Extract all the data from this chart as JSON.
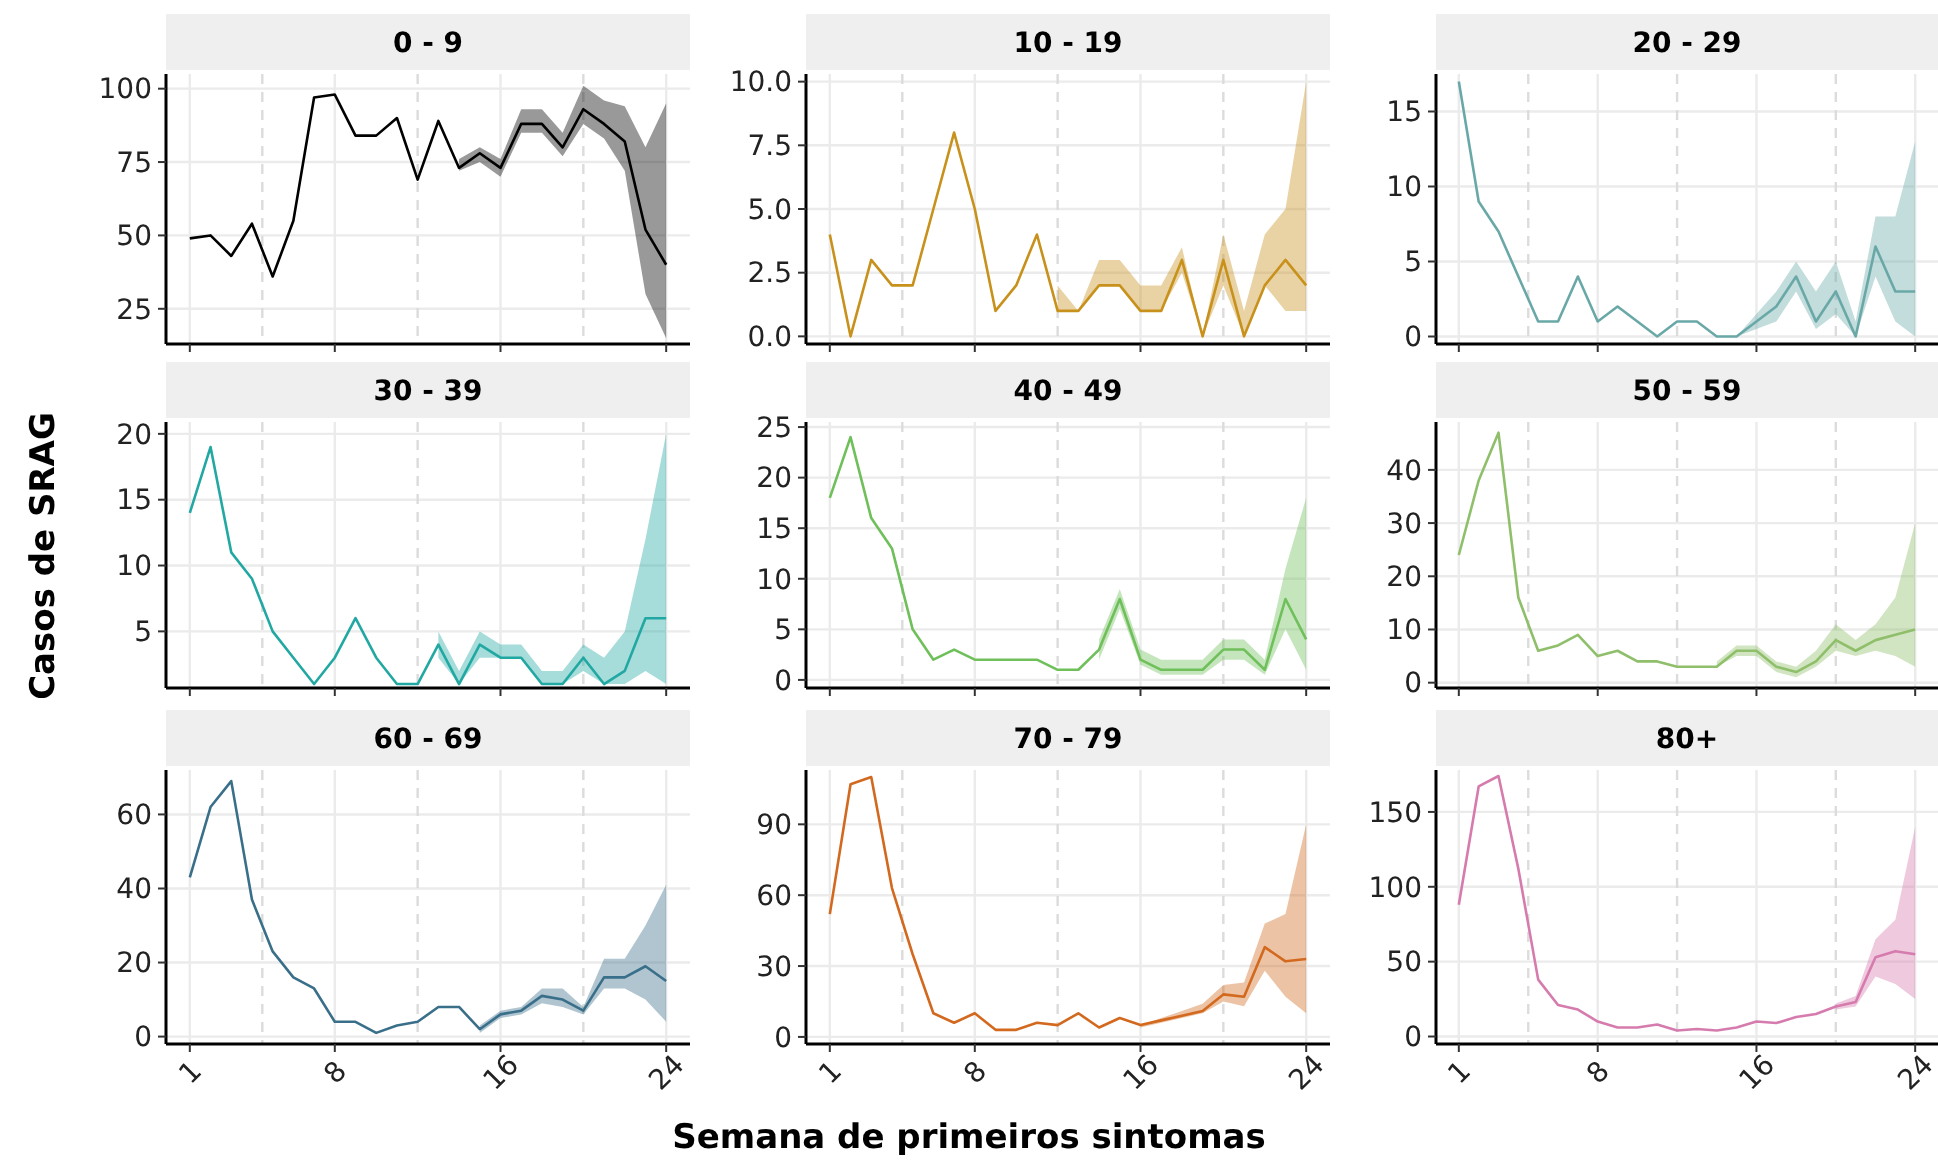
{
  "chart_data": [
    {
      "type": "line",
      "title": "0 - 9",
      "x": [
        1,
        2,
        3,
        4,
        5,
        6,
        7,
        8,
        9,
        10,
        11,
        12,
        13,
        14,
        15,
        16,
        17,
        18,
        19,
        20,
        21,
        22,
        23,
        24
      ],
      "xlim": [
        -0.15,
        25.15
      ],
      "xticks": [
        1,
        8,
        16,
        24
      ],
      "ylim": [
        13,
        105
      ],
      "yticks": [
        25,
        50,
        75,
        100
      ],
      "grid": true,
      "tick_labels": "y",
      "ref_lines": [
        {
          "axis": "x",
          "value": 4.5,
          "color": "#dcdcdc",
          "line_style": "dashed"
        },
        {
          "axis": "x",
          "value": 12,
          "color": "#dcdcdc",
          "line_style": "dashed"
        },
        {
          "axis": "x",
          "value": 20,
          "color": "#dcdcdc",
          "line_style": "dashed"
        }
      ],
      "series": [
        {
          "color": "#000000",
          "values": [
            49,
            50,
            43,
            54,
            36,
            55,
            97,
            98,
            84,
            84,
            90,
            69,
            89,
            73,
            78,
            73,
            88,
            88,
            80,
            93,
            88,
            82,
            52,
            40
          ],
          "lower": [
            null,
            null,
            null,
            null,
            null,
            null,
            null,
            null,
            null,
            null,
            null,
            null,
            null,
            72,
            75,
            70,
            85,
            85,
            77,
            88,
            83,
            72,
            30,
            15
          ],
          "upper": [
            null,
            null,
            null,
            null,
            null,
            null,
            null,
            null,
            null,
            null,
            null,
            null,
            null,
            76,
            80,
            76,
            93,
            93,
            85,
            101,
            96,
            94,
            80,
            95
          ]
        }
      ]
    },
    {
      "type": "line",
      "title": "10 - 19",
      "x": [
        1,
        2,
        3,
        4,
        5,
        6,
        7,
        8,
        9,
        10,
        11,
        12,
        13,
        14,
        15,
        16,
        17,
        18,
        19,
        20,
        21,
        22,
        23,
        24
      ],
      "xlim": [
        -0.15,
        25.15
      ],
      "xticks": [
        1,
        8,
        16,
        24
      ],
      "ylim": [
        -0.3,
        10.3
      ],
      "yticks": [
        {
          "value": 0,
          "label": "0.0"
        },
        {
          "value": 2.5,
          "label": "2.5"
        },
        {
          "value": 5,
          "label": "5.0"
        },
        {
          "value": 7.5,
          "label": "7.5"
        },
        {
          "value": 10,
          "label": "10.0"
        }
      ],
      "grid": true,
      "tick_labels": "y",
      "ref_lines": [
        {
          "axis": "x",
          "value": 4.5,
          "color": "#dcdcdc",
          "line_style": "dashed"
        },
        {
          "axis": "x",
          "value": 12,
          "color": "#dcdcdc",
          "line_style": "dashed"
        },
        {
          "axis": "x",
          "value": 20,
          "color": "#dcdcdc",
          "line_style": "dashed"
        }
      ],
      "series": [
        {
          "color": "#c8911c",
          "values": [
            4,
            0,
            3,
            2,
            2,
            5,
            8,
            5,
            1,
            2,
            4,
            1,
            1,
            2,
            2,
            1,
            1,
            3,
            0,
            3,
            0,
            2,
            3,
            2
          ],
          "lower": [
            null,
            null,
            null,
            null,
            null,
            null,
            null,
            null,
            null,
            null,
            null,
            1,
            1,
            2,
            2,
            1,
            1,
            2.5,
            0,
            2,
            0,
            2,
            1,
            1
          ],
          "upper": [
            null,
            null,
            null,
            null,
            null,
            null,
            null,
            null,
            null,
            null,
            null,
            2,
            1,
            3,
            3,
            2,
            2,
            3.5,
            0,
            4,
            1,
            4,
            5,
            10
          ]
        }
      ]
    },
    {
      "type": "line",
      "title": "20 - 29",
      "x": [
        1,
        2,
        3,
        4,
        5,
        6,
        7,
        8,
        9,
        10,
        11,
        12,
        13,
        14,
        15,
        16,
        17,
        18,
        19,
        20,
        21,
        22,
        23,
        24
      ],
      "xlim": [
        -0.15,
        25.15
      ],
      "xticks": [
        1,
        8,
        16,
        24
      ],
      "ylim": [
        -0.5,
        17.5
      ],
      "yticks": [
        0,
        5,
        10,
        15
      ],
      "grid": true,
      "tick_labels": "y",
      "ref_lines": [
        {
          "axis": "x",
          "value": 4.5,
          "color": "#dcdcdc",
          "line_style": "dashed"
        },
        {
          "axis": "x",
          "value": 12,
          "color": "#dcdcdc",
          "line_style": "dashed"
        },
        {
          "axis": "x",
          "value": 20,
          "color": "#dcdcdc",
          "line_style": "dashed"
        }
      ],
      "series": [
        {
          "color": "#6aa8a8",
          "values": [
            17,
            9,
            7,
            4,
            1,
            1,
            4,
            1,
            2,
            1,
            0,
            1,
            1,
            0,
            0,
            1,
            2,
            4,
            1,
            3,
            0,
            6,
            3,
            3
          ],
          "lower": [
            null,
            null,
            null,
            null,
            null,
            null,
            null,
            null,
            null,
            null,
            null,
            null,
            null,
            null,
            0,
            0.5,
            1,
            3,
            0.5,
            1.5,
            0,
            4,
            1,
            0
          ],
          "upper": [
            null,
            null,
            null,
            null,
            null,
            null,
            null,
            null,
            null,
            null,
            null,
            null,
            null,
            null,
            0,
            1.5,
            3,
            5,
            3,
            5,
            1,
            8,
            8,
            13
          ]
        }
      ]
    },
    {
      "type": "line",
      "title": "30 - 39",
      "ylabel": "Casos de SRAG",
      "x": [
        1,
        2,
        3,
        4,
        5,
        6,
        7,
        8,
        9,
        10,
        11,
        12,
        13,
        14,
        15,
        16,
        17,
        18,
        19,
        20,
        21,
        22,
        23,
        24
      ],
      "xlim": [
        -0.15,
        25.15
      ],
      "xticks": [
        1,
        8,
        16,
        24
      ],
      "ylim": [
        0.7,
        20.9
      ],
      "yticks": [
        5,
        10,
        15,
        20
      ],
      "grid": true,
      "tick_labels": "y",
      "ref_lines": [
        {
          "axis": "x",
          "value": 4.5,
          "color": "#dcdcdc",
          "line_style": "dashed"
        },
        {
          "axis": "x",
          "value": 12,
          "color": "#dcdcdc",
          "line_style": "dashed"
        },
        {
          "axis": "x",
          "value": 20,
          "color": "#dcdcdc",
          "line_style": "dashed"
        }
      ],
      "series": [
        {
          "color": "#21a8a2",
          "values": [
            14,
            19,
            11,
            9,
            5,
            3,
            1,
            3,
            6,
            3,
            1,
            1,
            4,
            1,
            4,
            3,
            3,
            1,
            1,
            3,
            1,
            2,
            6,
            6
          ],
          "lower": [
            null,
            null,
            null,
            null,
            null,
            null,
            null,
            null,
            null,
            null,
            null,
            null,
            3,
            1,
            3,
            3,
            3,
            1,
            1,
            2,
            1,
            1,
            2,
            1
          ],
          "upper": [
            null,
            null,
            null,
            null,
            null,
            null,
            null,
            null,
            null,
            null,
            null,
            null,
            5,
            2,
            5,
            4,
            4,
            2,
            2,
            4,
            3,
            5,
            12,
            20
          ]
        }
      ]
    },
    {
      "type": "line",
      "title": "40 - 49",
      "x": [
        1,
        2,
        3,
        4,
        5,
        6,
        7,
        8,
        9,
        10,
        11,
        12,
        13,
        14,
        15,
        16,
        17,
        18,
        19,
        20,
        21,
        22,
        23,
        24
      ],
      "xlim": [
        -0.15,
        25.15
      ],
      "xticks": [
        1,
        8,
        16,
        24
      ],
      "ylim": [
        -0.8,
        25.5
      ],
      "yticks": [
        0,
        5,
        10,
        15,
        20,
        25
      ],
      "grid": true,
      "tick_labels": "y",
      "ref_lines": [
        {
          "axis": "x",
          "value": 4.5,
          "color": "#dcdcdc",
          "line_style": "dashed"
        },
        {
          "axis": "x",
          "value": 12,
          "color": "#dcdcdc",
          "line_style": "dashed"
        },
        {
          "axis": "x",
          "value": 20,
          "color": "#dcdcdc",
          "line_style": "dashed"
        }
      ],
      "series": [
        {
          "color": "#6fbf5a",
          "values": [
            18,
            24,
            16,
            13,
            5,
            2,
            3,
            2,
            2,
            2,
            2,
            1,
            1,
            3,
            8,
            2,
            1,
            1,
            1,
            3,
            3,
            1,
            8,
            4
          ],
          "lower": [
            null,
            null,
            null,
            null,
            null,
            null,
            null,
            null,
            null,
            null,
            null,
            null,
            null,
            2,
            7,
            1.5,
            0.5,
            0.5,
            0.5,
            2,
            2,
            0.5,
            5,
            1
          ],
          "upper": [
            null,
            null,
            null,
            null,
            null,
            null,
            null,
            null,
            null,
            null,
            null,
            null,
            null,
            4,
            9,
            3,
            2,
            2,
            2,
            4,
            4,
            2,
            11,
            18
          ]
        }
      ]
    },
    {
      "type": "line",
      "title": "50 - 59",
      "x": [
        1,
        2,
        3,
        4,
        5,
        6,
        7,
        8,
        9,
        10,
        11,
        12,
        13,
        14,
        15,
        16,
        17,
        18,
        19,
        20,
        21,
        22,
        23,
        24
      ],
      "xlim": [
        -0.15,
        25.15
      ],
      "xticks": [
        1,
        8,
        16,
        24
      ],
      "ylim": [
        -1,
        49
      ],
      "yticks": [
        0,
        10,
        20,
        30,
        40
      ],
      "grid": true,
      "tick_labels": "y",
      "ref_lines": [
        {
          "axis": "x",
          "value": 4.5,
          "color": "#dcdcdc",
          "line_style": "dashed"
        },
        {
          "axis": "x",
          "value": 12,
          "color": "#dcdcdc",
          "line_style": "dashed"
        },
        {
          "axis": "x",
          "value": 20,
          "color": "#dcdcdc",
          "line_style": "dashed"
        }
      ],
      "series": [
        {
          "color": "#8fbf6a",
          "values": [
            24,
            38,
            47,
            16,
            6,
            7,
            9,
            5,
            6,
            4,
            4,
            3,
            3,
            3,
            6,
            6,
            3,
            2,
            4,
            8,
            6,
            8,
            9,
            10
          ],
          "lower": [
            null,
            null,
            null,
            null,
            null,
            null,
            null,
            null,
            null,
            null,
            null,
            null,
            null,
            3,
            5,
            5,
            2,
            1,
            3,
            6,
            5,
            6,
            5,
            3
          ],
          "upper": [
            null,
            null,
            null,
            null,
            null,
            null,
            null,
            null,
            null,
            null,
            null,
            null,
            null,
            4,
            7,
            7,
            4,
            3,
            6,
            11,
            8,
            11,
            16,
            30
          ]
        }
      ]
    },
    {
      "type": "line",
      "title": "60 - 69",
      "x": [
        1,
        2,
        3,
        4,
        5,
        6,
        7,
        8,
        9,
        10,
        11,
        12,
        13,
        14,
        15,
        16,
        17,
        18,
        19,
        20,
        21,
        22,
        23,
        24
      ],
      "xlim": [
        -0.15,
        25.15
      ],
      "xticks": [
        1,
        8,
        16,
        24
      ],
      "ylim": [
        -2,
        72
      ],
      "yticks": [
        0,
        20,
        40,
        60
      ],
      "grid": true,
      "ref_lines": [
        {
          "axis": "x",
          "value": 4.5,
          "color": "#dcdcdc",
          "line_style": "dashed"
        },
        {
          "axis": "x",
          "value": 12,
          "color": "#dcdcdc",
          "line_style": "dashed"
        },
        {
          "axis": "x",
          "value": 20,
          "color": "#dcdcdc",
          "line_style": "dashed"
        }
      ],
      "series": [
        {
          "color": "#3a6f8a",
          "values": [
            43,
            62,
            69,
            37,
            23,
            16,
            13,
            4,
            4,
            1,
            3,
            4,
            8,
            8,
            2,
            6,
            7,
            11,
            10,
            7,
            16,
            16,
            19,
            15
          ],
          "lower": [
            null,
            null,
            null,
            null,
            null,
            null,
            null,
            null,
            null,
            null,
            null,
            null,
            null,
            null,
            1,
            5,
            6,
            9,
            8,
            6,
            13,
            13,
            10,
            4
          ],
          "upper": [
            null,
            null,
            null,
            null,
            null,
            null,
            null,
            null,
            null,
            null,
            null,
            null,
            null,
            null,
            3,
            7,
            8,
            13,
            13,
            8,
            21,
            21,
            30,
            41
          ]
        }
      ]
    },
    {
      "type": "line",
      "title": "70 - 79",
      "xlabel": "Semana de primeiros sintomas",
      "x": [
        1,
        2,
        3,
        4,
        5,
        6,
        7,
        8,
        9,
        10,
        11,
        12,
        13,
        14,
        15,
        16,
        17,
        18,
        19,
        20,
        21,
        22,
        23,
        24
      ],
      "xlim": [
        -0.15,
        25.15
      ],
      "xticks": [
        1,
        8,
        16,
        24
      ],
      "ylim": [
        -3,
        113
      ],
      "yticks": [
        0,
        30,
        60,
        90
      ],
      "grid": true,
      "ref_lines": [
        {
          "axis": "x",
          "value": 4.5,
          "color": "#dcdcdc",
          "line_style": "dashed"
        },
        {
          "axis": "x",
          "value": 12,
          "color": "#dcdcdc",
          "line_style": "dashed"
        },
        {
          "axis": "x",
          "value": 20,
          "color": "#dcdcdc",
          "line_style": "dashed"
        }
      ],
      "series": [
        {
          "color": "#d2691e",
          "values": [
            52,
            107,
            110,
            63,
            35,
            10,
            6,
            10,
            3,
            3,
            6,
            5,
            10,
            4,
            8,
            5,
            7,
            9,
            11,
            18,
            17,
            38,
            32,
            33
          ],
          "lower": [
            null,
            null,
            null,
            null,
            null,
            null,
            null,
            null,
            null,
            null,
            null,
            null,
            null,
            null,
            null,
            4,
            6,
            8,
            10,
            15,
            13,
            28,
            17,
            10
          ],
          "upper": [
            null,
            null,
            null,
            null,
            null,
            null,
            null,
            null,
            null,
            null,
            null,
            null,
            null,
            null,
            null,
            5,
            8,
            11,
            14,
            22,
            23,
            48,
            52,
            90
          ]
        }
      ]
    },
    {
      "type": "line",
      "title": "80+",
      "x": [
        1,
        2,
        3,
        4,
        5,
        6,
        7,
        8,
        9,
        10,
        11,
        12,
        13,
        14,
        15,
        16,
        17,
        18,
        19,
        20,
        21,
        22,
        23,
        24
      ],
      "xlim": [
        -0.15,
        25.15
      ],
      "xticks": [
        1,
        8,
        16,
        24
      ],
      "ylim": [
        -5,
        178
      ],
      "yticks": [
        0,
        50,
        100,
        150
      ],
      "grid": true,
      "ref_lines": [
        {
          "axis": "x",
          "value": 4.5,
          "color": "#dcdcdc",
          "line_style": "dashed"
        },
        {
          "axis": "x",
          "value": 12,
          "color": "#dcdcdc",
          "line_style": "dashed"
        },
        {
          "axis": "x",
          "value": 20,
          "color": "#dcdcdc",
          "line_style": "dashed"
        }
      ],
      "series": [
        {
          "color": "#d67bad",
          "values": [
            88,
            167,
            174,
            112,
            38,
            21,
            18,
            10,
            6,
            6,
            8,
            4,
            5,
            4,
            6,
            10,
            9,
            13,
            15,
            20,
            23,
            53,
            57,
            55
          ],
          "lower": [
            null,
            null,
            null,
            null,
            null,
            null,
            null,
            null,
            null,
            null,
            null,
            null,
            null,
            null,
            null,
            null,
            null,
            null,
            null,
            18,
            20,
            40,
            35,
            25
          ],
          "upper": [
            null,
            null,
            null,
            null,
            null,
            null,
            null,
            null,
            null,
            null,
            null,
            null,
            null,
            null,
            null,
            null,
            null,
            null,
            null,
            22,
            27,
            65,
            78,
            140
          ]
        }
      ]
    }
  ]
}
